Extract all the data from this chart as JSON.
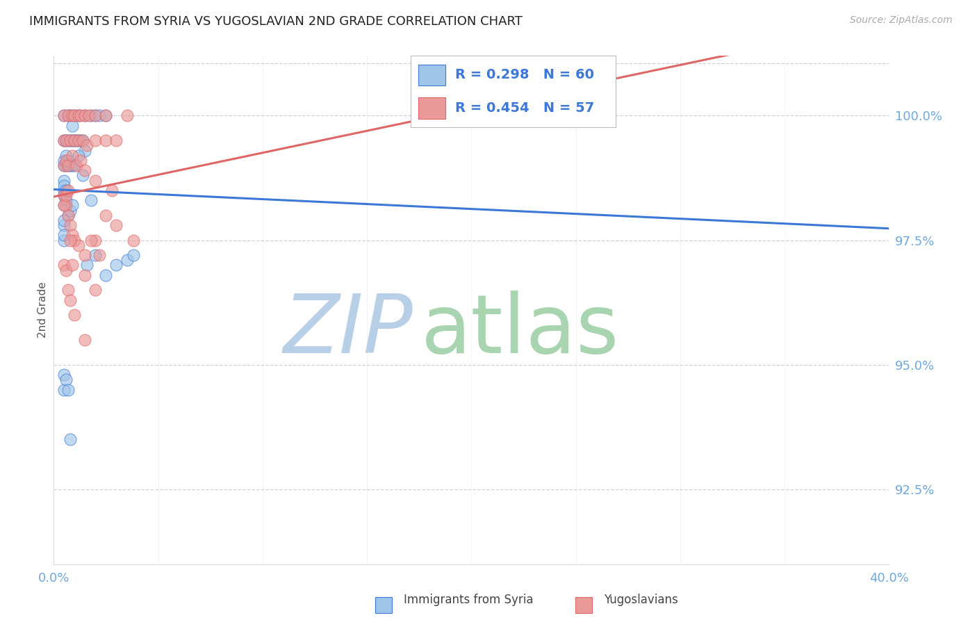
{
  "title": "IMMIGRANTS FROM SYRIA VS YUGOSLAVIAN 2ND GRADE CORRELATION CHART",
  "source": "Source: ZipAtlas.com",
  "ylabel": "2nd Grade",
  "ylabel_right_ticks": [
    92.5,
    95.0,
    97.5,
    100.0
  ],
  "ylabel_right_labels": [
    "92.5%",
    "95.0%",
    "97.5%",
    "100.0%"
  ],
  "xmin": 0.0,
  "xmax": 40.0,
  "ymin": 91.0,
  "ymax": 101.2,
  "blue_R": 0.298,
  "blue_N": 60,
  "pink_R": 0.454,
  "pink_N": 57,
  "blue_color": "#9fc5e8",
  "pink_color": "#ea9999",
  "blue_line_color": "#3c78d8",
  "pink_line_color": "#e06666",
  "legend_text_color": "#3c78d8",
  "watermark_zip_color": "#a4c2f4",
  "watermark_atlas_color": "#b6d7a8",
  "grid_color": "#cccccc",
  "tick_color": "#6fa8dc",
  "blue_x": [
    0.5,
    0.7,
    0.8,
    1.0,
    1.2,
    1.5,
    1.8,
    2.0,
    2.2,
    2.5,
    0.5,
    0.6,
    0.7,
    0.8,
    0.9,
    1.0,
    1.1,
    1.2,
    1.3,
    1.4,
    0.5,
    0.5,
    0.6,
    0.6,
    0.7,
    0.7,
    0.8,
    0.9,
    1.0,
    1.5,
    0.5,
    0.5,
    0.5,
    0.5,
    0.5,
    0.6,
    0.6,
    0.7,
    0.8,
    0.9,
    0.5,
    0.5,
    0.5,
    0.5,
    1.6,
    2.0,
    2.5,
    3.0,
    3.5,
    3.8,
    0.5,
    0.5,
    0.6,
    0.7,
    0.8,
    0.9,
    1.0,
    1.2,
    1.4,
    1.8
  ],
  "blue_y": [
    100.0,
    100.0,
    100.0,
    100.0,
    100.0,
    100.0,
    100.0,
    100.0,
    100.0,
    100.0,
    99.5,
    99.5,
    99.5,
    99.5,
    99.5,
    99.5,
    99.5,
    99.5,
    99.5,
    99.5,
    99.0,
    99.1,
    99.0,
    99.2,
    99.0,
    99.1,
    99.0,
    99.0,
    99.0,
    99.3,
    98.7,
    98.5,
    98.6,
    98.4,
    98.2,
    98.3,
    98.5,
    98.0,
    98.1,
    98.2,
    97.8,
    97.9,
    97.5,
    97.6,
    97.0,
    97.2,
    96.8,
    97.0,
    97.1,
    97.2,
    94.5,
    94.8,
    94.7,
    94.5,
    93.5,
    99.8,
    99.5,
    99.2,
    98.8,
    98.3
  ],
  "pink_x": [
    0.5,
    0.7,
    0.9,
    1.0,
    1.2,
    1.3,
    1.5,
    1.7,
    2.0,
    2.5,
    0.5,
    0.6,
    0.8,
    1.0,
    1.2,
    1.4,
    1.6,
    2.0,
    2.5,
    3.0,
    0.5,
    0.6,
    0.7,
    0.9,
    1.1,
    1.3,
    1.5,
    2.0,
    2.8,
    3.5,
    0.5,
    0.6,
    0.7,
    0.8,
    0.9,
    1.0,
    1.2,
    1.5,
    2.0,
    3.8,
    0.5,
    0.6,
    0.7,
    0.8,
    1.0,
    1.5,
    1.8,
    2.2,
    2.5,
    3.0,
    0.5,
    0.6,
    0.7,
    0.8,
    0.9,
    2.0,
    1.5
  ],
  "pink_y": [
    100.0,
    100.0,
    100.0,
    100.0,
    100.0,
    100.0,
    100.0,
    100.0,
    100.0,
    100.0,
    99.5,
    99.5,
    99.5,
    99.5,
    99.5,
    99.5,
    99.4,
    99.5,
    99.5,
    99.5,
    99.0,
    99.1,
    99.0,
    99.2,
    99.0,
    99.1,
    98.9,
    98.7,
    98.5,
    100.0,
    98.4,
    98.2,
    98.0,
    97.8,
    97.6,
    97.5,
    97.4,
    97.2,
    97.5,
    97.5,
    97.0,
    96.9,
    96.5,
    96.3,
    96.0,
    95.5,
    97.5,
    97.2,
    98.0,
    97.8,
    98.2,
    98.4,
    98.5,
    97.5,
    97.0,
    96.5,
    96.8
  ]
}
